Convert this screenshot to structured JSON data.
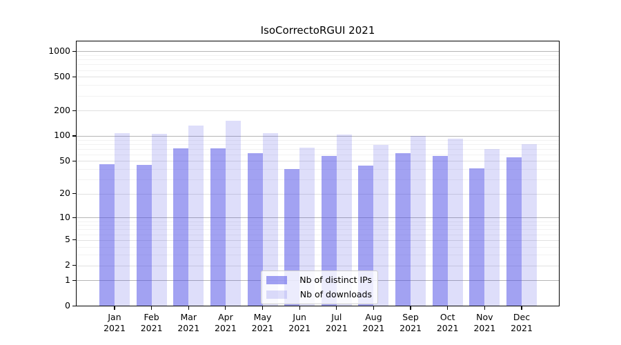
{
  "title": "IsoCorrectoRGUI 2021",
  "chart_data": {
    "type": "bar",
    "categories": [
      "Jan 2021",
      "Feb 2021",
      "Mar 2021",
      "Apr 2021",
      "May 2021",
      "Jun 2021",
      "Jul 2021",
      "Aug 2021",
      "Sep 2021",
      "Oct 2021",
      "Nov 2021",
      "Dec 2021"
    ],
    "series": [
      {
        "name": "Nb of distinct IPs",
        "color": "rgba(70,70,230,0.50)",
        "values": [
          46,
          45,
          71,
          71,
          62,
          40,
          58,
          44,
          62,
          58,
          41,
          56
        ]
      },
      {
        "name": "Nb of downloads",
        "color": "rgba(70,70,230,0.18)",
        "values": [
          108,
          105,
          133,
          152,
          108,
          73,
          104,
          78,
          100,
          93,
          70,
          79
        ]
      }
    ],
    "title": "IsoCorrectoRGUI 2021",
    "xlabel": "",
    "ylabel": "",
    "yscale": "log1p",
    "yticks": [
      0,
      1,
      2,
      5,
      10,
      20,
      50,
      100,
      200,
      500,
      1000
    ],
    "ylim": [
      0,
      1320
    ],
    "grid": "horizontal, log minor gridlines",
    "legend_position": "lower center",
    "colors": {
      "bar_dark": "rgba(70,70,230,0.50)",
      "bar_light": "rgba(70,70,230,0.18)",
      "grid_major": "#b4b4b4",
      "grid_tick": "#e0e0e0",
      "grid_minor": "#f2f2f2",
      "spine": "#000000",
      "background": "#ffffff"
    }
  }
}
